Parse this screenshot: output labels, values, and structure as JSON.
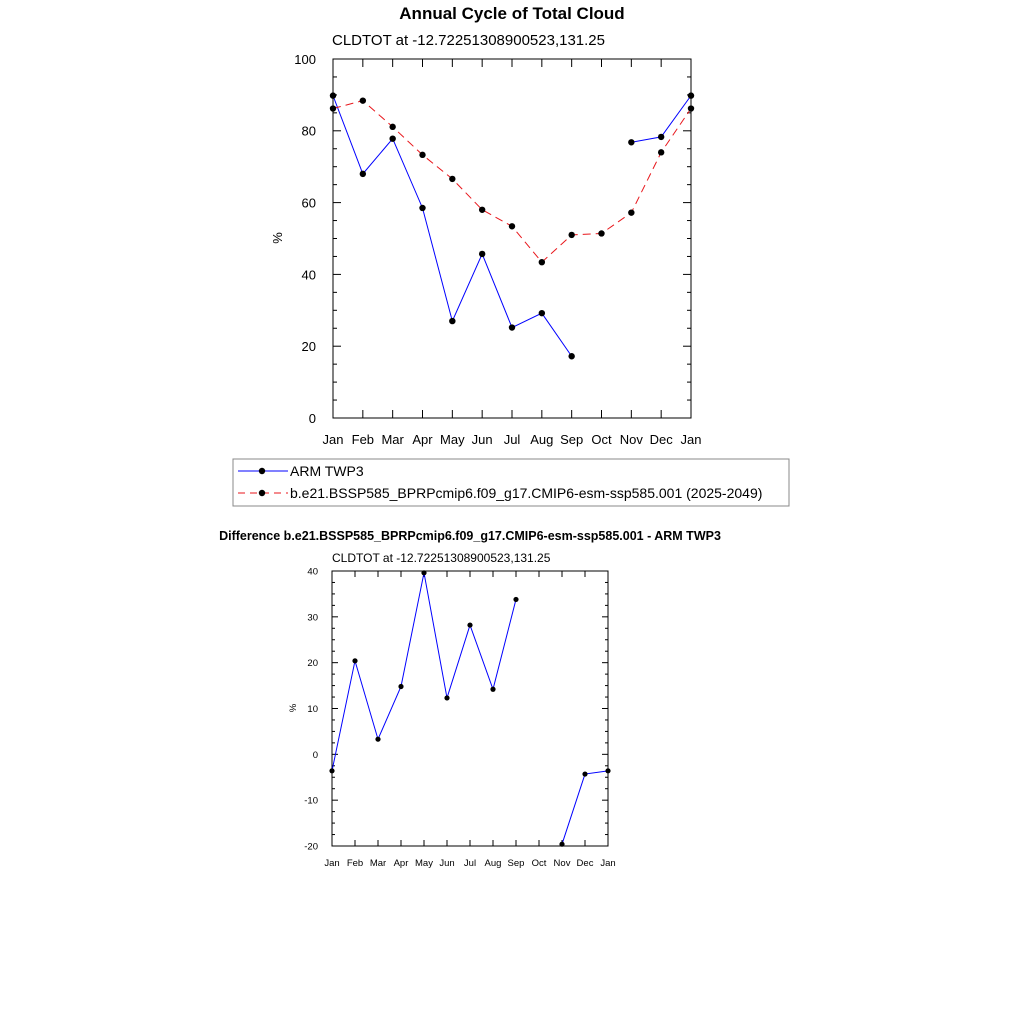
{
  "chart_data": [
    {
      "type": "line",
      "title": "Annual Cycle of Total Cloud",
      "subtitle": "CLDTOT at -12.72251308900523,131.25",
      "xlabel": "",
      "ylabel": "%",
      "categories": [
        "Jan",
        "Feb",
        "Mar",
        "Apr",
        "May",
        "Jun",
        "Jul",
        "Aug",
        "Sep",
        "Oct",
        "Nov",
        "Dec",
        "Jan"
      ],
      "ylim": [
        0,
        100
      ],
      "yticks": [
        "0",
        "20",
        "40",
        "60",
        "80",
        "100"
      ],
      "series": [
        {
          "name": "ARM TWP3",
          "color": "#0000ff",
          "dash": "solid",
          "values": [
            89.8,
            68.0,
            77.8,
            58.5,
            27.0,
            45.7,
            25.2,
            29.2,
            17.2,
            null,
            76.8,
            78.3,
            89.8
          ]
        },
        {
          "name": "b.e21.BSSP585_BPRPcmip6.f09_g17.CMIP6-esm-ssp585.001 (2025-2049)",
          "color": "#e8161b",
          "dash": "dashed",
          "values": [
            86.2,
            88.4,
            81.1,
            73.3,
            66.6,
            58.0,
            53.4,
            43.4,
            51.0,
            51.4,
            57.2,
            74.0,
            86.2
          ]
        }
      ],
      "legend_position": "bottom"
    },
    {
      "type": "line",
      "title": "Difference b.e21.BSSP585_BPRPcmip6.f09_g17.CMIP6-esm-ssp585.001 - ARM TWP3",
      "subtitle": "CLDTOT at -12.72251308900523,131.25",
      "xlabel": "",
      "ylabel": "%",
      "categories": [
        "Jan",
        "Feb",
        "Mar",
        "Apr",
        "May",
        "Jun",
        "Jul",
        "Aug",
        "Sep",
        "Oct",
        "Nov",
        "Dec",
        "Jan"
      ],
      "ylim": [
        -20,
        40
      ],
      "yticks": [
        "-20",
        "-10",
        "0",
        "10",
        "20",
        "30",
        "40"
      ],
      "series": [
        {
          "color": "#0000ff",
          "values": [
            -3.6,
            20.4,
            3.3,
            14.8,
            39.6,
            12.3,
            28.2,
            14.2,
            33.8,
            null,
            -19.6,
            -4.3,
            -3.6
          ]
        }
      ]
    }
  ]
}
